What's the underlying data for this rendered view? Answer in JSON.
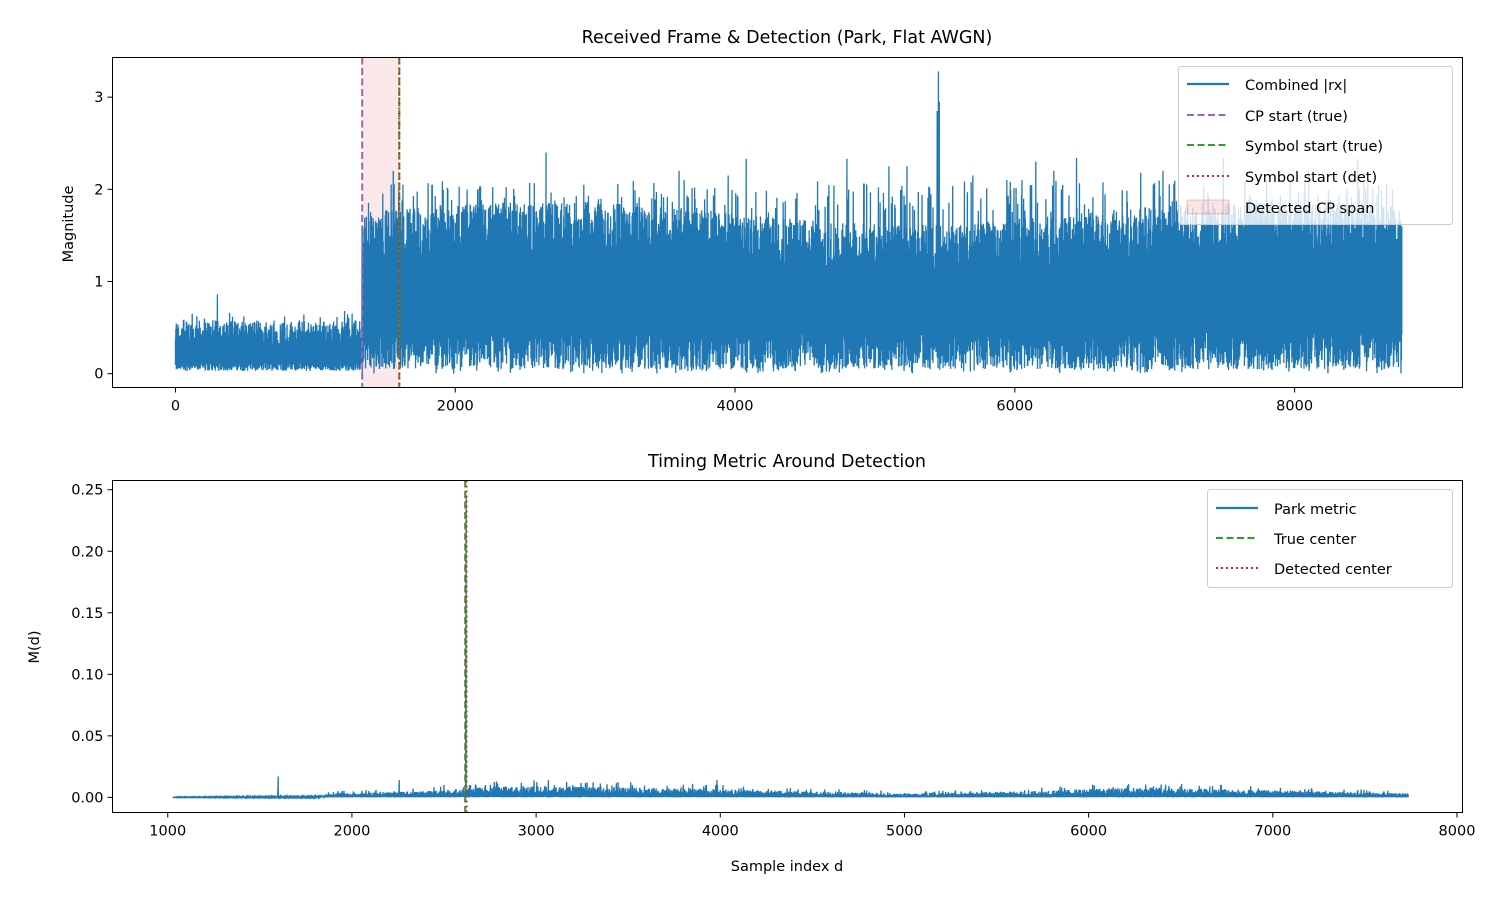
{
  "chart_data": [
    {
      "type": "line",
      "title": "Received Frame & Detection (Park, Flat AWGN)",
      "xlabel": "",
      "ylabel": "Magnitude",
      "xlim": [
        -450,
        9200
      ],
      "ylim": [
        -0.15,
        3.43
      ],
      "xticks": [
        0,
        2000,
        4000,
        6000,
        8000
      ],
      "xtick_labels": [
        "0",
        "2000",
        "4000",
        "6000",
        "8000"
      ],
      "yticks": [
        0,
        1,
        2,
        3
      ],
      "ytick_labels": [
        "0",
        "1",
        "2",
        "3"
      ],
      "grid": false,
      "legend_position": "upper right",
      "colors": {
        "signal": "#1f77b4",
        "cp_true": "#9467bd",
        "symbol_true": "#2ca02c",
        "symbol_det": "#d62728",
        "cp_span": "#d62728"
      },
      "signal": {
        "name": "Combined |rx|",
        "x_range": [
          0,
          8767
        ],
        "noise_segment": {
          "x_end": 1335,
          "low": 0.03,
          "high": 0.55,
          "spikes": [
            [
              300,
              0.86
            ],
            [
              120,
              0.65
            ],
            [
              780,
              0.62
            ],
            [
              1210,
              0.68
            ]
          ]
        },
        "frame_segment": {
          "x_start": 1335,
          "low": 0.1,
          "high": 1.95,
          "floor_min": 0.0,
          "spikes": [
            [
              1557,
              2.2
            ],
            [
              1625,
              2.05
            ],
            [
              2650,
              2.4
            ],
            [
              3800,
              2.0
            ],
            [
              4080,
              2.33
            ],
            [
              4800,
              2.33
            ],
            [
              5100,
              2.25
            ],
            [
              5455,
              3.28
            ],
            [
              5460,
              2.95
            ],
            [
              5445,
              2.85
            ],
            [
              5230,
              2.25
            ],
            [
              6150,
              2.3
            ],
            [
              6440,
              2.34
            ],
            [
              6280,
              2.2
            ],
            [
              7060,
              2.2
            ],
            [
              7490,
              2.34
            ],
            [
              8450,
              2.33
            ],
            [
              8700,
              2.0
            ],
            [
              3600,
              2.2
            ],
            [
              6050,
              2.1
            ],
            [
              7800,
              2.1
            ],
            [
              2920,
              2.05
            ],
            [
              3950,
              2.15
            ],
            [
              5700,
              2.15
            ],
            [
              6900,
              2.18
            ],
            [
              8100,
              2.2
            ]
          ]
        }
      },
      "vlines": [
        {
          "name": "CP start (true)",
          "x": 1335,
          "style": "dashed",
          "color_key": "cp_true"
        },
        {
          "name": "Symbol start (true)",
          "x": 1600,
          "style": "dashed",
          "color_key": "symbol_true"
        },
        {
          "name": "Symbol start (det)",
          "x": 1600,
          "style": "dotted",
          "color_key": "symbol_det"
        }
      ],
      "span": {
        "name": "Detected CP span",
        "x_start": 1335,
        "x_end": 1600
      },
      "legend": [
        "Combined |rx|",
        "CP start (true)",
        "Symbol start (true)",
        "Symbol start (det)",
        "Detected CP span"
      ]
    },
    {
      "type": "line",
      "title": "Timing Metric Around Detection",
      "xlabel": "Sample index d",
      "ylabel": "M(d)",
      "xlim": [
        700,
        8030
      ],
      "ylim": [
        -0.0123,
        0.2575
      ],
      "xticks": [
        1000,
        2000,
        3000,
        4000,
        5000,
        6000,
        7000,
        8000
      ],
      "xtick_labels": [
        "1000",
        "2000",
        "3000",
        "4000",
        "5000",
        "6000",
        "7000",
        "8000"
      ],
      "yticks": [
        0.0,
        0.05,
        0.1,
        0.15,
        0.2,
        0.25
      ],
      "ytick_labels": [
        "0.00",
        "0.05",
        "0.10",
        "0.15",
        "0.20",
        "0.25"
      ],
      "grid": false,
      "legend_position": "upper right",
      "colors": {
        "signal": "#1f77b4",
        "true_center": "#2ca02c",
        "det_center": "#d62728"
      },
      "signal": {
        "name": "Park metric",
        "x_range": [
          1030,
          7735
        ],
        "peak": [
          2620,
          0.245
        ],
        "baseline": [
          [
            1030,
            0.0002
          ],
          [
            1800,
            0.0005
          ],
          [
            1900,
            0.002
          ],
          [
            2400,
            0.003
          ],
          [
            2700,
            0.005
          ],
          [
            3000,
            0.0055
          ],
          [
            4000,
            0.004
          ],
          [
            4400,
            0.003
          ],
          [
            5000,
            0.002
          ],
          [
            5700,
            0.003
          ],
          [
            6300,
            0.005
          ],
          [
            6700,
            0.004
          ],
          [
            7735,
            0.002
          ]
        ],
        "spikes": [
          [
            1600,
            0.017
          ],
          [
            2255,
            0.014
          ],
          [
            2920,
            0.012
          ],
          [
            3850,
            0.011
          ],
          [
            3980,
            0.014
          ],
          [
            6720,
            0.01
          ],
          [
            6350,
            0.009
          ],
          [
            3100,
            0.01
          ],
          [
            2500,
            0.01
          ]
        ]
      },
      "vlines": [
        {
          "name": "True center",
          "x": 2615,
          "style": "dashed",
          "color_key": "true_center"
        },
        {
          "name": "Detected center",
          "x": 2622,
          "style": "dotted",
          "color_key": "det_center"
        }
      ],
      "legend": [
        "Park metric",
        "True center",
        "Detected center"
      ]
    }
  ]
}
